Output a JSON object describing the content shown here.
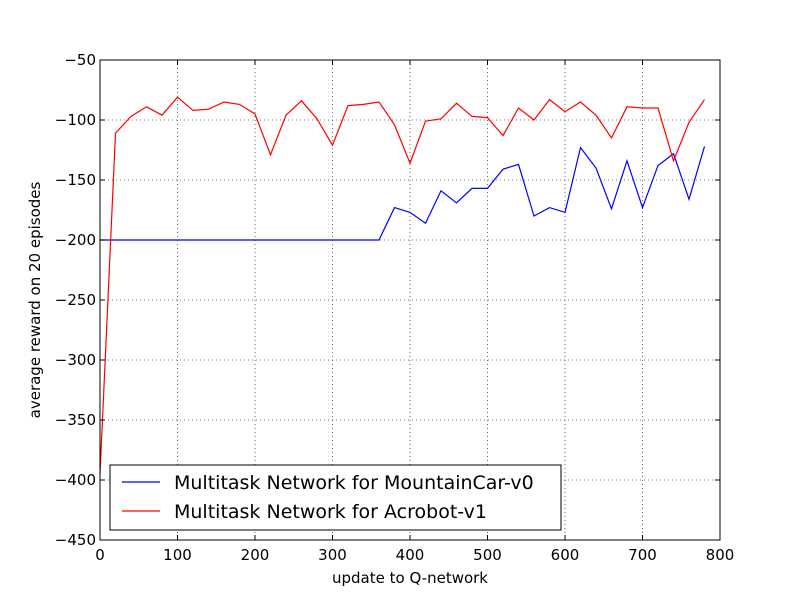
{
  "chart_data": {
    "type": "line",
    "title": "",
    "xlabel": "update to Q-network",
    "ylabel": "average reward on 20 episodes",
    "xlim": [
      0,
      800
    ],
    "ylim": [
      -450,
      -50
    ],
    "xticks": [
      0,
      100,
      200,
      300,
      400,
      500,
      600,
      700,
      800
    ],
    "yticks": [
      -450,
      -400,
      -350,
      -300,
      -250,
      -200,
      -150,
      -100,
      -50
    ],
    "xtick_labels": [
      "0",
      "100",
      "200",
      "300",
      "400",
      "500",
      "600",
      "700",
      "800"
    ],
    "ytick_labels": [
      "−450",
      "−400",
      "−350",
      "−300",
      "−250",
      "−200",
      "−150",
      "−100",
      "−50"
    ],
    "grid": true,
    "legend_position": "lower-left",
    "series": [
      {
        "name": "Multitask Network for MountainCar-v0",
        "color": "#0000ff",
        "x": [
          0,
          20,
          40,
          60,
          80,
          100,
          120,
          140,
          160,
          180,
          200,
          220,
          240,
          260,
          280,
          300,
          320,
          340,
          360,
          380,
          400,
          420,
          440,
          460,
          480,
          500,
          520,
          540,
          560,
          580,
          600,
          620,
          640,
          660,
          680,
          700,
          720,
          740,
          760,
          780
        ],
        "y": [
          -200,
          -200,
          -200,
          -200,
          -200,
          -200,
          -200,
          -200,
          -200,
          -200,
          -200,
          -200,
          -200,
          -200,
          -200,
          -200,
          -200,
          -200,
          -200,
          -173,
          -177,
          -186,
          -159,
          -169,
          -157,
          -157,
          -141,
          -137,
          -180,
          -173,
          -177,
          -123,
          -140,
          -174,
          -134,
          -173,
          -138,
          -128,
          -166,
          -122
        ]
      },
      {
        "name": "Multitask Network for Acrobot-v1",
        "color": "#ff0000",
        "x": [
          0,
          20,
          40,
          60,
          80,
          100,
          120,
          140,
          160,
          180,
          200,
          220,
          240,
          260,
          280,
          300,
          320,
          340,
          360,
          380,
          400,
          420,
          440,
          460,
          480,
          500,
          520,
          540,
          560,
          580,
          600,
          620,
          640,
          660,
          680,
          700,
          720,
          740,
          760,
          780
        ],
        "y": [
          -395,
          -111,
          -97,
          -89,
          -96,
          -81,
          -92,
          -91,
          -85,
          -87,
          -95,
          -129,
          -96,
          -84,
          -99,
          -121,
          -88,
          -87,
          -85,
          -104,
          -136,
          -101,
          -99,
          -86,
          -97,
          -98,
          -113,
          -90,
          -100,
          -83,
          -93,
          -85,
          -96,
          -115,
          -89,
          -90,
          -90,
          -134,
          -102,
          -83
        ]
      }
    ]
  }
}
